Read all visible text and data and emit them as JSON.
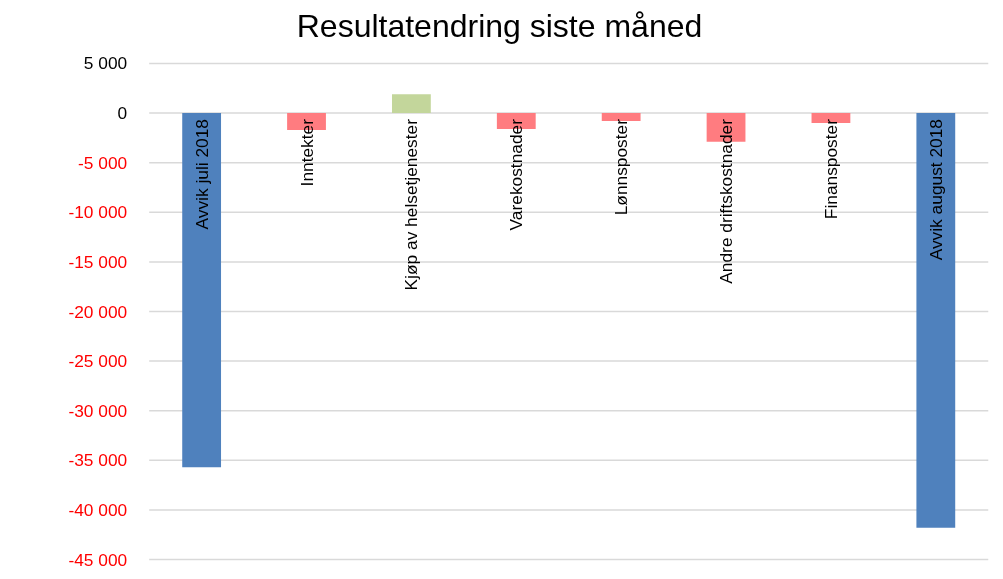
{
  "chart_data": {
    "type": "bar",
    "title": "Resultatendring siste måned",
    "categories": [
      "Avvik juli 2018",
      "Inntekter",
      "Kjøp av helsetjenester",
      "Varekostnader",
      "Lønnsposter",
      "Andre driftskostnader",
      "Finansposter",
      "Avvik august 2018"
    ],
    "values": [
      -35700,
      -1700,
      1900,
      -1600,
      -800,
      -2900,
      -1000,
      -41800
    ],
    "colors": [
      "#4f81bd",
      "#ff7c80",
      "#c3d69b",
      "#ff7c80",
      "#ff7c80",
      "#ff7c80",
      "#ff7c80",
      "#4f81bd"
    ],
    "ylim": [
      -45000,
      5000
    ],
    "yticks": [
      {
        "value": 5000,
        "label": "5 000"
      },
      {
        "value": 0,
        "label": "0"
      },
      {
        "value": -5000,
        "label": "-5 000"
      },
      {
        "value": -10000,
        "label": "-10 000"
      },
      {
        "value": -15000,
        "label": "-15 000"
      },
      {
        "value": -20000,
        "label": "-20 000"
      },
      {
        "value": -25000,
        "label": "-25 000"
      },
      {
        "value": -30000,
        "label": "-30 000"
      },
      {
        "value": -35000,
        "label": "-35 000"
      },
      {
        "value": -40000,
        "label": "-40 000"
      },
      {
        "value": -45000,
        "label": "-45 000"
      }
    ],
    "grid": "y"
  }
}
